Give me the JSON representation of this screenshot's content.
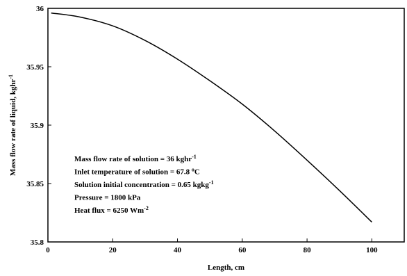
{
  "chart_data": {
    "type": "line",
    "xlabel": "Length, cm",
    "ylabel": {
      "text": "Mass flow rate of liquid, kghr",
      "sup": "-1"
    },
    "xlim": [
      0,
      110
    ],
    "ylim": [
      35.8,
      36
    ],
    "xticks": [
      0,
      20,
      40,
      60,
      80,
      100
    ],
    "yticks": [
      35.8,
      35.85,
      35.9,
      35.95,
      36
    ],
    "ytick_labels": [
      "35.8",
      "35.85",
      "35.9",
      "35.95",
      "36"
    ],
    "grid": false,
    "legend": "none",
    "series": [
      {
        "color": "#000000",
        "x": [
          1,
          10,
          20,
          30,
          40,
          50,
          60,
          70,
          80,
          90,
          100
        ],
        "y": [
          35.996,
          35.9925,
          35.985,
          35.9725,
          35.9565,
          35.938,
          35.918,
          35.895,
          35.87,
          35.844,
          35.817
        ]
      }
    ],
    "annotations": [
      {
        "text": "Mass flow rate of solution = 36 kghr",
        "sup": "-1"
      },
      {
        "text": "Inlet temperature of solution = 67.8 ",
        "sup": "o",
        "tail": "C"
      },
      {
        "text": "Solution initial concentration = 0.65 kgkg",
        "sup": "-1"
      },
      {
        "text": "Pressure = 1800 kPa"
      },
      {
        "text": "Heat flux = 6250 Wm",
        "sup": "-2"
      }
    ]
  }
}
